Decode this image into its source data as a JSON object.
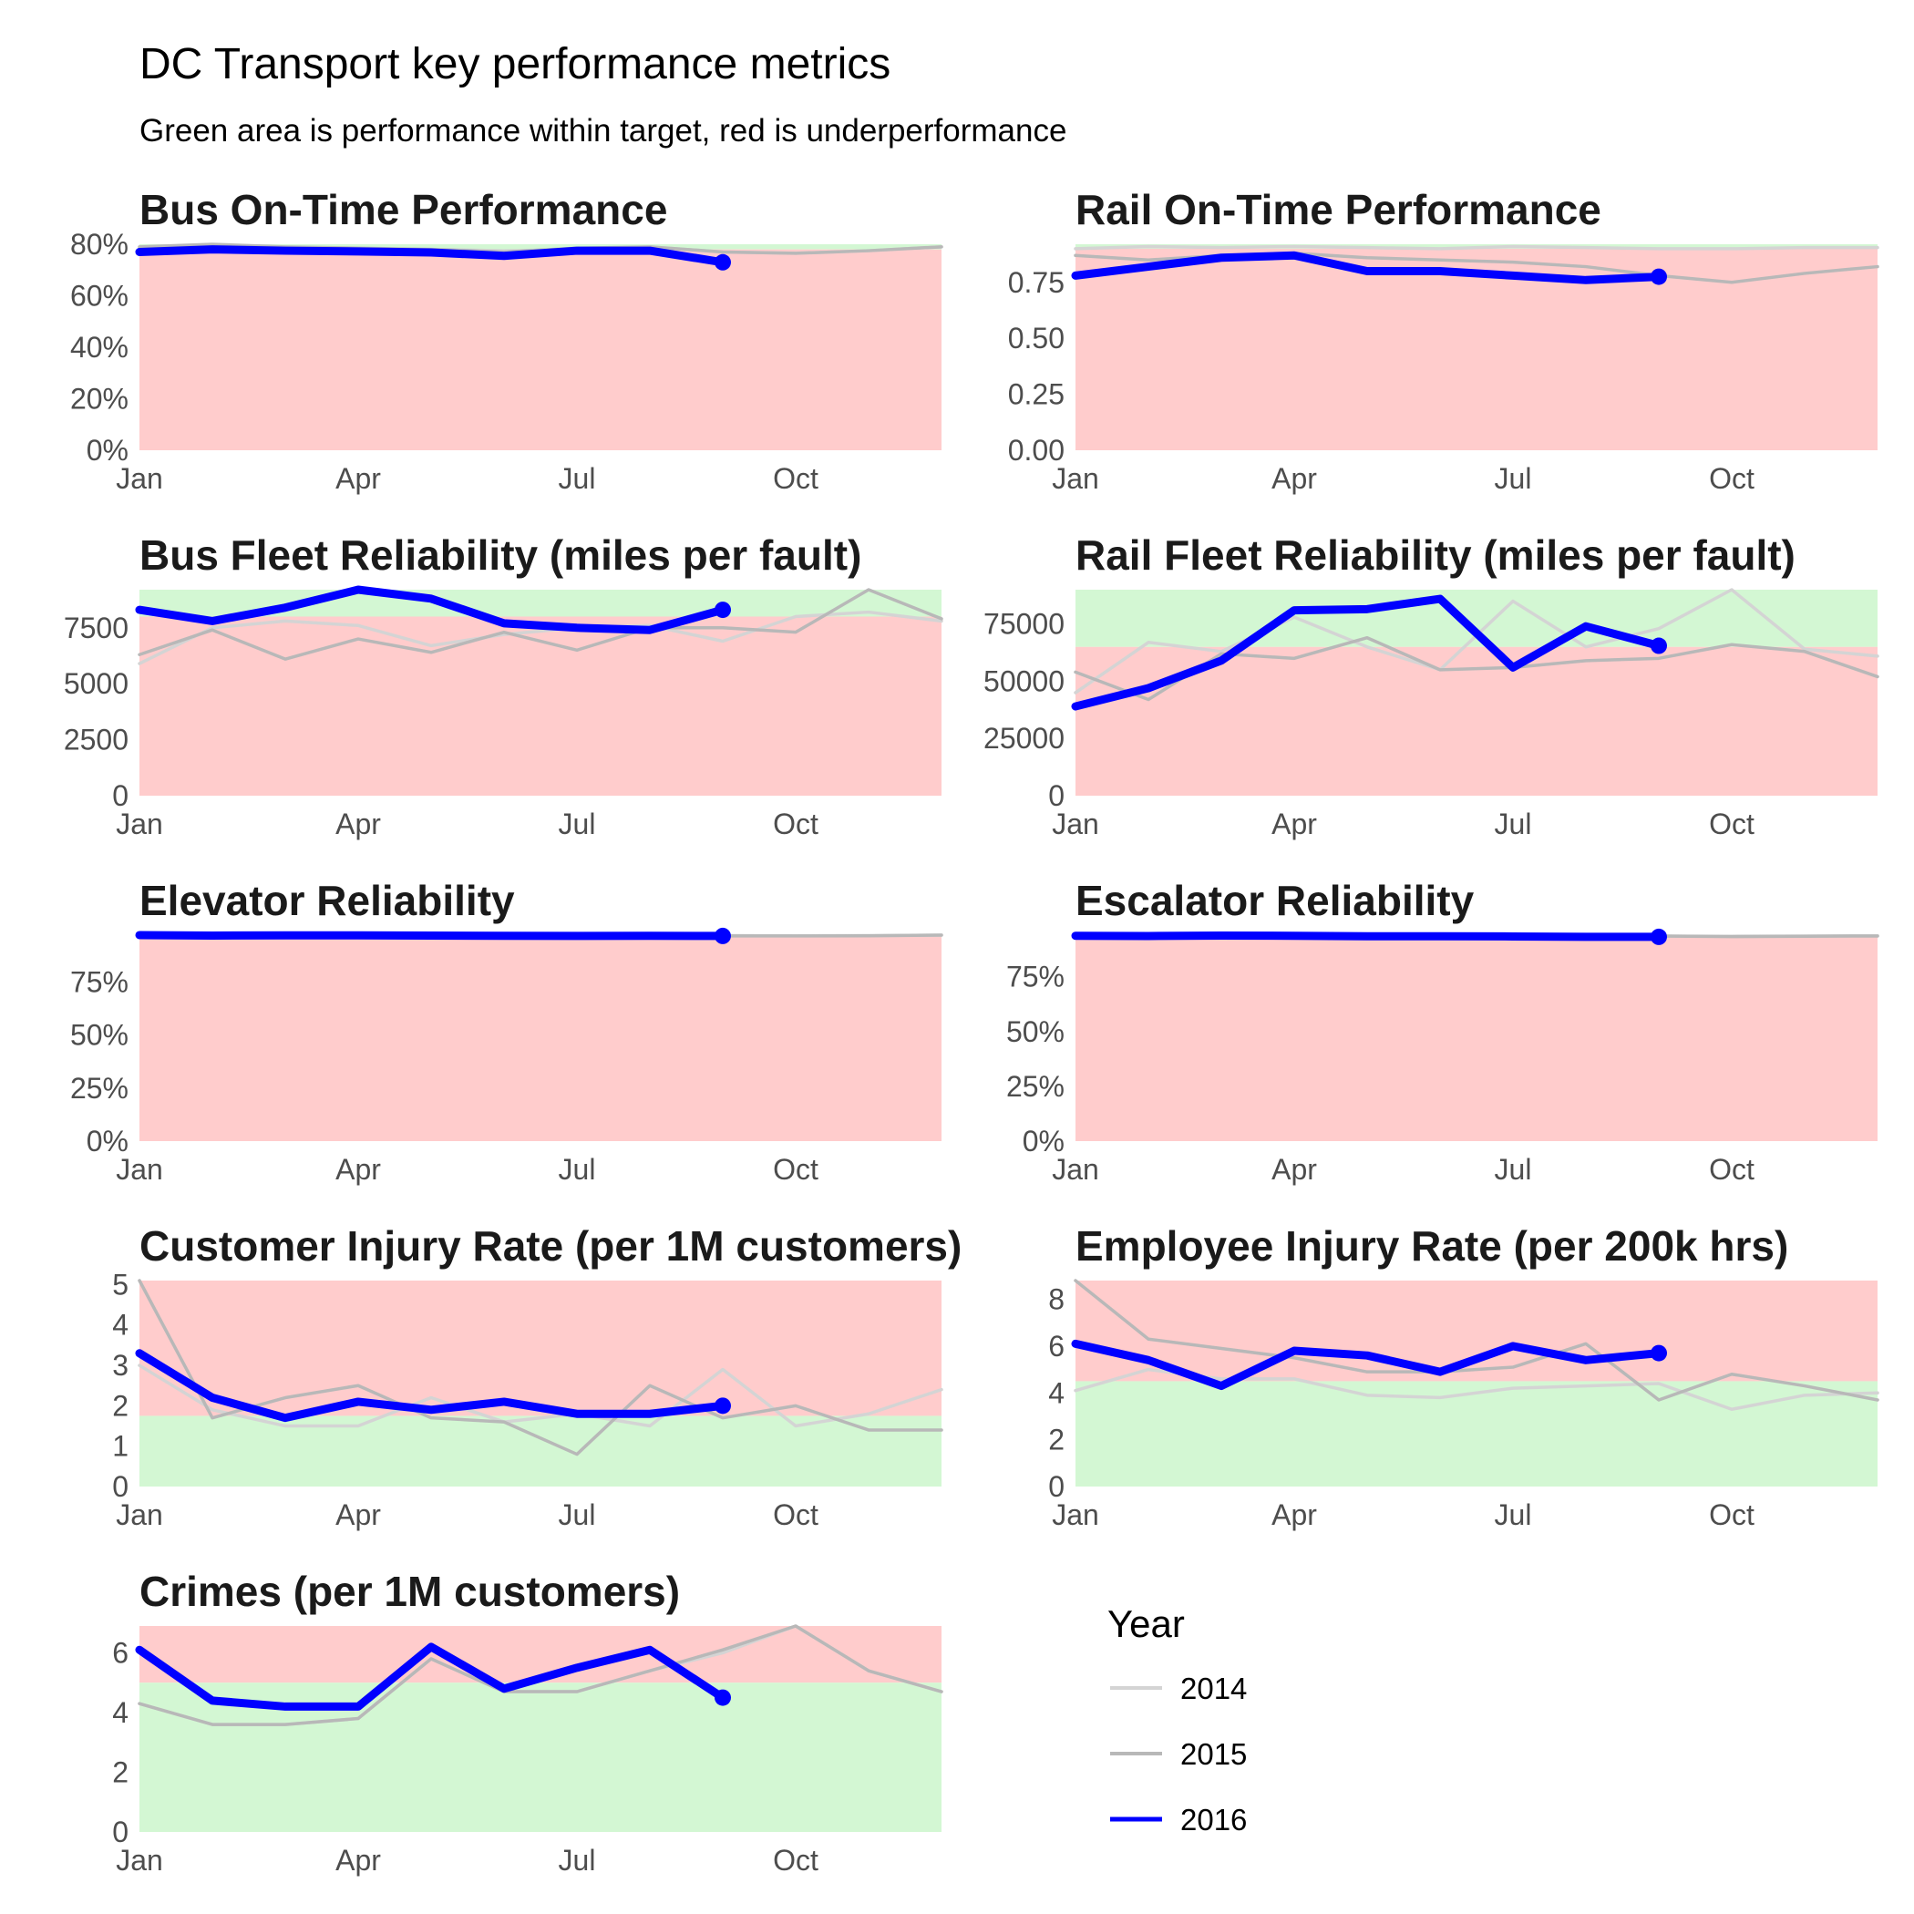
{
  "title": "DC Transport key performance metrics",
  "subtitle": "Green area is performance within target, red is underperformance",
  "colors": {
    "good": "#d3f7d3",
    "bad": "#ffcccc",
    "y2014": "#d4d4d4",
    "y2015": "#b8b8b8",
    "y2016": "#0000ff"
  },
  "legend": {
    "title": "Year",
    "items": [
      {
        "label": "2014",
        "color": "#d4d4d4"
      },
      {
        "label": "2015",
        "color": "#b8b8b8"
      },
      {
        "label": "2016",
        "color": "#0000ff"
      }
    ]
  },
  "x_ticks": [
    "Jan",
    "Apr",
    "Jul",
    "Oct"
  ],
  "chart_data": [
    {
      "type": "line",
      "title": "Bus On-Time Performance",
      "ylim": [
        0,
        0.8
      ],
      "y_ticks": [
        0,
        0.2,
        0.4,
        0.6,
        0.8
      ],
      "y_tick_labels": [
        "0%",
        "20%",
        "40%",
        "60%",
        "80%"
      ],
      "target": 0.78,
      "higher_is_better": true,
      "x_months": [
        1,
        2,
        3,
        4,
        5,
        6,
        7,
        8,
        9,
        10,
        11,
        12
      ],
      "series": [
        {
          "name": "2014",
          "values": [
            0.78,
            0.79,
            0.785,
            0.78,
            0.78,
            0.775,
            0.78,
            0.79,
            0.77,
            0.765,
            0.775,
            0.79
          ]
        },
        {
          "name": "2015",
          "values": [
            0.79,
            0.8,
            0.79,
            0.785,
            0.78,
            0.77,
            0.785,
            0.79,
            0.77,
            0.765,
            0.775,
            0.79
          ]
        },
        {
          "name": "2016",
          "values": [
            0.77,
            0.78,
            0.775,
            0.772,
            0.768,
            0.755,
            0.775,
            0.775,
            0.73
          ]
        }
      ]
    },
    {
      "type": "line",
      "title": "Rail On-Time Performance",
      "ylim": [
        0,
        0.92
      ],
      "y_ticks": [
        0,
        0.25,
        0.5,
        0.75
      ],
      "y_tick_labels": [
        "0.00",
        "0.25",
        "0.50",
        "0.75"
      ],
      "target": 0.9,
      "higher_is_better": true,
      "x_months": [
        1,
        2,
        3,
        4,
        5,
        6,
        7,
        8,
        9,
        10,
        11,
        12
      ],
      "series": [
        {
          "name": "2014",
          "values": [
            0.9,
            0.91,
            0.905,
            0.91,
            0.905,
            0.9,
            0.91,
            0.905,
            0.9,
            0.9,
            0.905,
            0.905
          ]
        },
        {
          "name": "2015",
          "values": [
            0.87,
            0.85,
            0.87,
            0.88,
            0.86,
            0.85,
            0.84,
            0.82,
            0.78,
            0.75,
            0.79,
            0.82
          ]
        },
        {
          "name": "2016",
          "values": [
            0.78,
            0.82,
            0.86,
            0.87,
            0.8,
            0.8,
            0.78,
            0.76,
            0.775
          ]
        }
      ]
    },
    {
      "type": "line",
      "title": "Bus Fleet Reliability (miles per fault)",
      "ylim": [
        0,
        9200
      ],
      "y_ticks": [
        0,
        2500,
        5000,
        7500
      ],
      "y_tick_labels": [
        "0",
        "2500",
        "5000",
        "7500"
      ],
      "target": 8000,
      "higher_is_better": true,
      "x_months": [
        1,
        2,
        3,
        4,
        5,
        6,
        7,
        8,
        9,
        10,
        11,
        12
      ],
      "series": [
        {
          "name": "2014",
          "values": [
            5900,
            7500,
            7800,
            7600,
            6700,
            7200,
            7500,
            7600,
            6900,
            8000,
            8200,
            7800
          ]
        },
        {
          "name": "2015",
          "values": [
            6300,
            7400,
            6100,
            7000,
            6400,
            7300,
            6500,
            7500,
            7500,
            7300,
            9200,
            7900
          ]
        },
        {
          "name": "2016",
          "values": [
            8300,
            7800,
            8400,
            9200,
            8800,
            7700,
            7500,
            7400,
            8300
          ]
        }
      ]
    },
    {
      "type": "line",
      "title": "Rail Fleet Reliability (miles per fault)",
      "ylim": [
        0,
        90000
      ],
      "y_ticks": [
        0,
        25000,
        50000,
        75000
      ],
      "y_tick_labels": [
        "0",
        "25000",
        "50000",
        "75000"
      ],
      "target": 65000,
      "higher_is_better": true,
      "x_months": [
        1,
        2,
        3,
        4,
        5,
        6,
        7,
        8,
        9,
        10,
        11,
        12
      ],
      "series": [
        {
          "name": "2014",
          "values": [
            45000,
            67000,
            63000,
            78000,
            65000,
            55000,
            85000,
            65000,
            73000,
            90000,
            64000,
            61000
          ]
        },
        {
          "name": "2015",
          "values": [
            54000,
            42000,
            62000,
            60000,
            69000,
            55000,
            56000,
            59000,
            60000,
            66000,
            63000,
            52000
          ]
        },
        {
          "name": "2016",
          "values": [
            39000,
            47000,
            59000,
            81000,
            81500,
            86000,
            56000,
            74000,
            65500
          ]
        }
      ]
    },
    {
      "type": "line",
      "title": "Elevator Reliability",
      "ylim": [
        0,
        0.97
      ],
      "y_ticks": [
        0,
        0.25,
        0.5,
        0.75
      ],
      "y_tick_labels": [
        "0%",
        "25%",
        "50%",
        "75%"
      ],
      "target": 0.965,
      "higher_is_better": true,
      "x_months": [
        1,
        2,
        3,
        4,
        5,
        6,
        7,
        8,
        9,
        10,
        11,
        12
      ],
      "series": [
        {
          "name": "2014",
          "values": [
            0.97,
            0.969,
            0.97,
            0.97,
            0.969,
            0.969,
            0.968,
            0.969,
            0.968,
            0.967,
            0.968,
            0.97
          ]
        },
        {
          "name": "2015",
          "values": [
            0.97,
            0.969,
            0.97,
            0.97,
            0.969,
            0.969,
            0.968,
            0.969,
            0.966,
            0.966,
            0.967,
            0.97
          ]
        },
        {
          "name": "2016",
          "values": [
            0.97,
            0.968,
            0.969,
            0.969,
            0.968,
            0.967,
            0.966,
            0.967,
            0.966
          ]
        }
      ]
    },
    {
      "type": "line",
      "title": "Escalator Reliability",
      "ylim": [
        0,
        0.94
      ],
      "y_ticks": [
        0,
        0.25,
        0.5,
        0.75
      ],
      "y_tick_labels": [
        "0%",
        "25%",
        "50%",
        "75%"
      ],
      "target": 0.93,
      "higher_is_better": true,
      "x_months": [
        1,
        2,
        3,
        4,
        5,
        6,
        7,
        8,
        9,
        10,
        11,
        12
      ],
      "series": [
        {
          "name": "2014",
          "values": [
            0.94,
            0.939,
            0.94,
            0.939,
            0.938,
            0.938,
            0.937,
            0.936,
            0.936,
            0.935,
            0.936,
            0.937
          ]
        },
        {
          "name": "2015",
          "values": [
            0.94,
            0.939,
            0.94,
            0.939,
            0.938,
            0.938,
            0.937,
            0.936,
            0.936,
            0.933,
            0.935,
            0.936
          ]
        },
        {
          "name": "2016",
          "values": [
            0.937,
            0.936,
            0.938,
            0.937,
            0.935,
            0.935,
            0.934,
            0.932,
            0.932
          ]
        }
      ]
    },
    {
      "type": "line",
      "title": "Customer Injury Rate (per 1M customers)",
      "ylim": [
        0,
        5.1
      ],
      "y_ticks": [
        0,
        1,
        2,
        3,
        4,
        5
      ],
      "y_tick_labels": [
        "0",
        "1",
        "2",
        "3",
        "4",
        "5"
      ],
      "target": 1.75,
      "higher_is_better": false,
      "x_months": [
        1,
        2,
        3,
        4,
        5,
        6,
        7,
        8,
        9,
        10,
        11,
        12
      ],
      "series": [
        {
          "name": "2014",
          "values": [
            3.0,
            1.9,
            1.5,
            1.5,
            2.2,
            1.6,
            1.8,
            1.5,
            2.9,
            1.5,
            1.8,
            2.4
          ]
        },
        {
          "name": "2015",
          "values": [
            5.1,
            1.7,
            2.2,
            2.5,
            1.7,
            1.6,
            0.8,
            2.5,
            1.7,
            2.0,
            1.4,
            1.4
          ]
        },
        {
          "name": "2016",
          "values": [
            3.3,
            2.2,
            1.7,
            2.1,
            1.9,
            2.1,
            1.8,
            1.8,
            2.0
          ]
        }
      ]
    },
    {
      "type": "line",
      "title": "Employee Injury Rate (per 200k hrs)",
      "ylim": [
        0,
        8.8
      ],
      "y_ticks": [
        0,
        2,
        4,
        6,
        8
      ],
      "y_tick_labels": [
        "0",
        "2",
        "4",
        "6",
        "8"
      ],
      "target": 4.5,
      "higher_is_better": false,
      "x_months": [
        1,
        2,
        3,
        4,
        5,
        6,
        7,
        8,
        9,
        10,
        11,
        12
      ],
      "series": [
        {
          "name": "2014",
          "values": [
            4.1,
            5.0,
            4.6,
            4.6,
            3.9,
            3.8,
            4.2,
            4.3,
            4.4,
            3.3,
            3.9,
            4.0
          ]
        },
        {
          "name": "2015",
          "values": [
            8.8,
            6.3,
            5.9,
            5.5,
            4.9,
            4.9,
            5.1,
            6.1,
            3.7,
            4.8,
            4.3,
            3.7
          ]
        },
        {
          "name": "2016",
          "values": [
            6.1,
            5.4,
            4.3,
            5.8,
            5.6,
            4.9,
            6.0,
            5.4,
            5.7
          ]
        }
      ]
    },
    {
      "type": "line",
      "title": "Crimes (per 1M customers)",
      "ylim": [
        0,
        6.9
      ],
      "y_ticks": [
        0,
        2,
        4,
        6
      ],
      "y_tick_labels": [
        "0",
        "2",
        "4",
        "6"
      ],
      "target": 5.0,
      "higher_is_better": false,
      "x_months": [
        1,
        2,
        3,
        4,
        5,
        6,
        7,
        8,
        9,
        10,
        11,
        12
      ],
      "series": [
        {
          "name": "2014",
          "values": [
            4.3,
            3.6,
            3.6,
            3.8,
            5.8,
            4.7,
            4.7,
            5.4,
            6.0,
            6.9,
            5.4,
            4.7
          ]
        },
        {
          "name": "2015",
          "values": [
            4.3,
            3.6,
            3.6,
            3.8,
            5.8,
            4.7,
            4.7,
            5.4,
            6.1,
            6.9,
            5.4,
            4.7
          ]
        },
        {
          "name": "2016",
          "values": [
            6.1,
            4.4,
            4.2,
            4.2,
            6.2,
            4.8,
            5.5,
            6.1,
            4.5
          ]
        }
      ]
    }
  ]
}
